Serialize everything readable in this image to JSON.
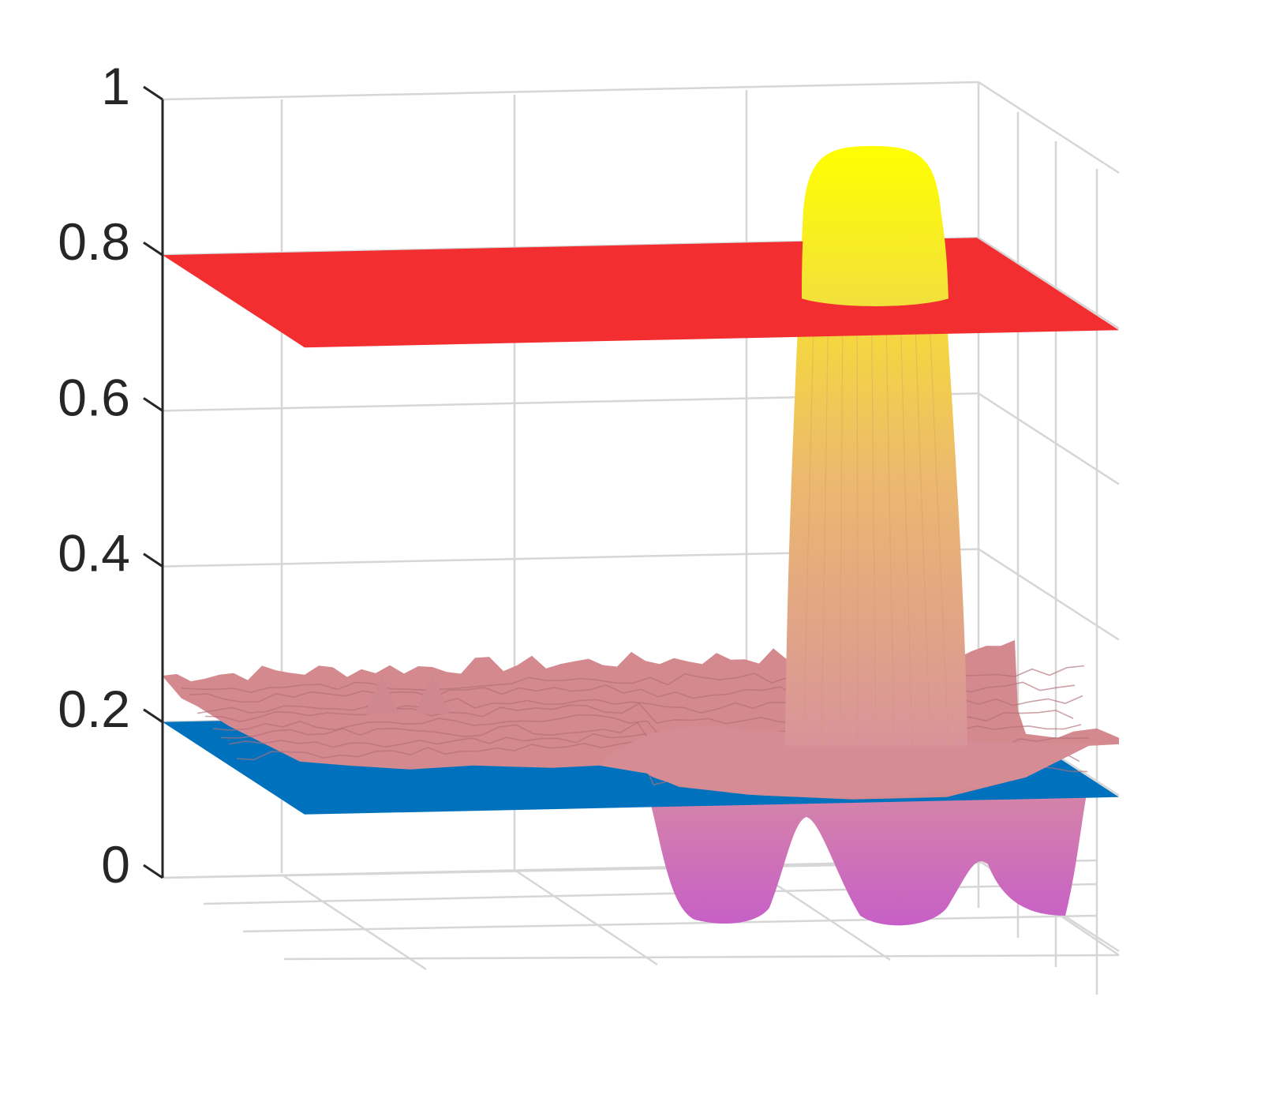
{
  "chart_data": {
    "type": "surface",
    "title": "",
    "xlabel": "",
    "ylabel": "",
    "zlabel": "",
    "zlim": [
      0,
      1
    ],
    "z_ticks": [
      0,
      0.2,
      0.4,
      0.6,
      0.8,
      1
    ],
    "z_tick_labels": [
      "0",
      "0.2",
      "0.4",
      "0.6",
      "0.8",
      "1"
    ],
    "grid": true,
    "legend": "none",
    "planes": [
      {
        "name": "",
        "z": 0.8,
        "color": "#f32e30"
      },
      {
        "name": "",
        "z": 0.2,
        "color": "#0072bd"
      }
    ],
    "surface": {
      "baseline_z": 0.2,
      "baseline_color": "#d4898f",
      "peak": {
        "z_max": 0.94,
        "z_min": 0.2,
        "color_top": "#ffff00",
        "color_bottom": "#d8939a"
      },
      "dips": [
        {
          "z_min": 0.05
        },
        {
          "z_min": 0.05
        },
        {
          "z_min": 0.06
        }
      ],
      "dip_color": "#c75fc6"
    }
  }
}
